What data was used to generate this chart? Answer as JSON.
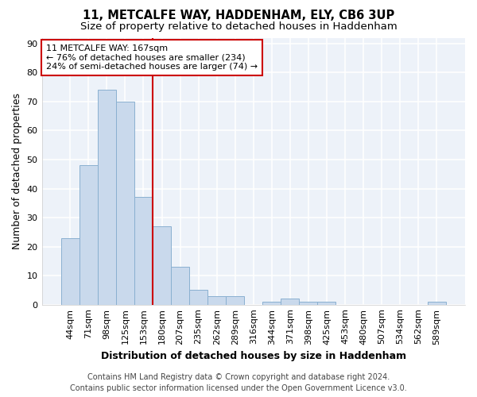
{
  "title_line1": "11, METCALFE WAY, HADDENHAM, ELY, CB6 3UP",
  "title_line2": "Size of property relative to detached houses in Haddenham",
  "xlabel": "Distribution of detached houses by size in Haddenham",
  "ylabel": "Number of detached properties",
  "categories": [
    "44sqm",
    "71sqm",
    "98sqm",
    "125sqm",
    "153sqm",
    "180sqm",
    "207sqm",
    "235sqm",
    "262sqm",
    "289sqm",
    "316sqm",
    "344sqm",
    "371sqm",
    "398sqm",
    "425sqm",
    "453sqm",
    "480sqm",
    "507sqm",
    "534sqm",
    "562sqm",
    "589sqm"
  ],
  "values": [
    23,
    48,
    74,
    70,
    37,
    27,
    13,
    5,
    3,
    3,
    0,
    1,
    2,
    1,
    1,
    0,
    0,
    0,
    0,
    0,
    1
  ],
  "bar_color": "#c9d9ec",
  "bar_edge_color": "#8ab0d0",
  "highlight_index": 5,
  "highlight_color_red": "#cc0000",
  "annotation_line1": "11 METCALFE WAY: 167sqm",
  "annotation_line2": "← 76% of detached houses are smaller (234)",
  "annotation_line3": "24% of semi-detached houses are larger (74) →",
  "annotation_box_color": "#ffffff",
  "annotation_box_edge_color": "#cc0000",
  "ylim": [
    0,
    92
  ],
  "yticks": [
    0,
    10,
    20,
    30,
    40,
    50,
    60,
    70,
    80,
    90
  ],
  "footer_line1": "Contains HM Land Registry data © Crown copyright and database right 2024.",
  "footer_line2": "Contains public sector information licensed under the Open Government Licence v3.0.",
  "background_color": "#ffffff",
  "plot_bg_color": "#edf2f9",
  "grid_color": "#ffffff",
  "title_fontsize": 10.5,
  "subtitle_fontsize": 9.5,
  "axis_label_fontsize": 9,
  "tick_fontsize": 8,
  "annotation_fontsize": 8,
  "footer_fontsize": 7
}
